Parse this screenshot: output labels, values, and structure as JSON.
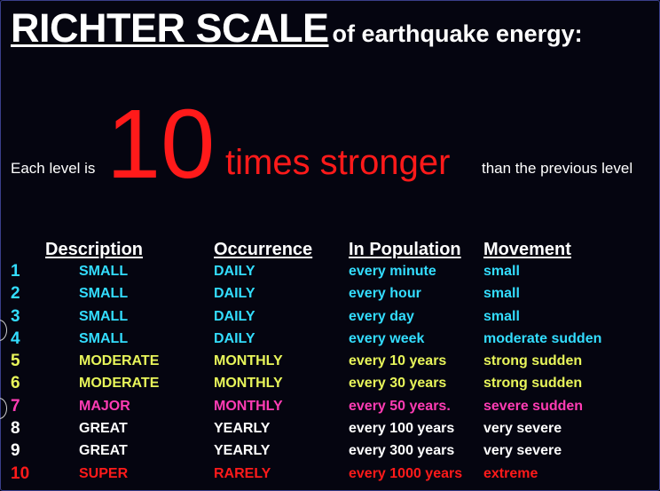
{
  "title": {
    "main": "RICHTER SCALE",
    "sub": "of  earthquake energy:"
  },
  "tagline": {
    "prefix": "Each level is",
    "number": "10",
    "emphasis": "times stronger",
    "suffix": "than the previous level"
  },
  "table": {
    "headers": [
      "Description",
      "Occurrence",
      "In Population",
      "Movement"
    ],
    "rows": [
      {
        "level": "1",
        "description": "SMALL",
        "occurrence": "DAILY",
        "population": "every minute",
        "movement": "small",
        "color": "cyan"
      },
      {
        "level": "2",
        "description": "SMALL",
        "occurrence": "DAILY",
        "population": "every hour",
        "movement": "small",
        "color": "cyan"
      },
      {
        "level": "3",
        "description": "SMALL",
        "occurrence": "DAILY",
        "population": "every day",
        "movement": "small",
        "color": "cyan"
      },
      {
        "level": "4",
        "description": "SMALL",
        "occurrence": "DAILY",
        "population": "every week",
        "movement": "moderate sudden",
        "color": "cyan"
      },
      {
        "level": "5",
        "description": "MODERATE",
        "occurrence": "MONTHLY",
        "population": "every 10 years",
        "movement": "strong sudden",
        "color": "yellow"
      },
      {
        "level": "6",
        "description": "MODERATE",
        "occurrence": "MONTHLY",
        "population": "every 30 years",
        "movement": "strong sudden",
        "color": "yellow"
      },
      {
        "level": "7",
        "description": "MAJOR",
        "occurrence": "MONTHLY",
        "population": "every 50 years.",
        "movement": "severe sudden",
        "color": "pink"
      },
      {
        "level": "8",
        "description": "GREAT",
        "occurrence": "YEARLY",
        "population": "every 100 years",
        "movement": "very severe",
        "color": "white"
      },
      {
        "level": "9",
        "description": "GREAT",
        "occurrence": "YEARLY",
        "population": "every 300 years",
        "movement": "very severe",
        "color": "white"
      },
      {
        "level": "10",
        "description": "SUPER",
        "occurrence": "RARELY",
        "population": "every 1000 years",
        "movement": "extreme",
        "color": "red"
      }
    ]
  },
  "colors": {
    "background": "#050510",
    "cyan": "#33ddff",
    "yellow": "#e8f55a",
    "pink": "#ff3cb4",
    "white": "#ffffff",
    "red": "#ff1a1a"
  }
}
